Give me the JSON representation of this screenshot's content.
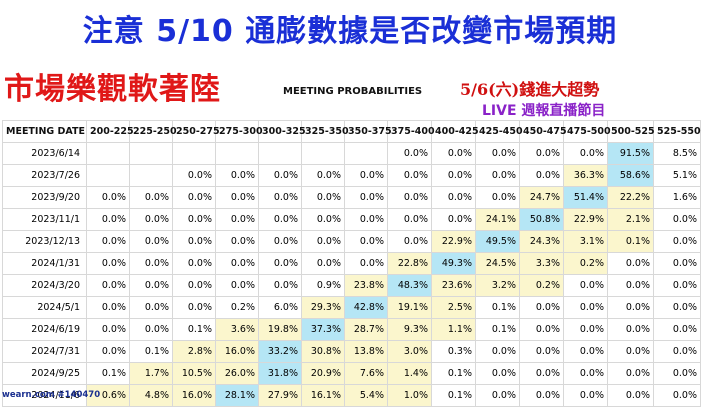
{
  "headline": "注意 5/10 通膨數據是否改變市場預期",
  "red_title": "市場樂觀軟著陸",
  "table_title": "MEETING PROBABILITIES",
  "promo_line1": "5/6(六)錢進大超勢",
  "promo_line2": "LIVE 週報直播節目",
  "footer": "wearn.com #140470",
  "colors": {
    "headline": "#1a2fd6",
    "red_title": "#e01818",
    "highlight": "#b5e6f5",
    "near_highlight": "#fbf6cd"
  },
  "table": {
    "columns": [
      "MEETING DATE",
      "200-225",
      "225-250",
      "250-275",
      "275-300",
      "300-325",
      "325-350",
      "350-375",
      "375-400",
      "400-425",
      "425-450",
      "450-475",
      "475-500",
      "500-525",
      "525-550"
    ],
    "rows": [
      {
        "date": "2023/6/14",
        "cells": [
          "",
          "",
          "",
          "",
          "",
          "",
          "",
          "0.0%",
          "0.0%",
          "0.0%",
          "0.0%",
          "0.0%",
          "91.5%",
          "8.5%"
        ]
      },
      {
        "date": "2023/7/26",
        "cells": [
          "",
          "",
          "0.0%",
          "0.0%",
          "0.0%",
          "0.0%",
          "0.0%",
          "0.0%",
          "0.0%",
          "0.0%",
          "0.0%",
          "36.3%",
          "58.6%",
          "5.1%"
        ]
      },
      {
        "date": "2023/9/20",
        "cells": [
          "0.0%",
          "0.0%",
          "0.0%",
          "0.0%",
          "0.0%",
          "0.0%",
          "0.0%",
          "0.0%",
          "0.0%",
          "0.0%",
          "24.7%",
          "51.4%",
          "22.2%",
          "1.6%"
        ]
      },
      {
        "date": "2023/11/1",
        "cells": [
          "0.0%",
          "0.0%",
          "0.0%",
          "0.0%",
          "0.0%",
          "0.0%",
          "0.0%",
          "0.0%",
          "0.0%",
          "24.1%",
          "50.8%",
          "22.9%",
          "2.1%",
          "0.0%"
        ]
      },
      {
        "date": "2023/12/13",
        "cells": [
          "0.0%",
          "0.0%",
          "0.0%",
          "0.0%",
          "0.0%",
          "0.0%",
          "0.0%",
          "0.0%",
          "22.9%",
          "49.5%",
          "24.3%",
          "3.1%",
          "0.1%",
          "0.0%"
        ]
      },
      {
        "date": "2024/1/31",
        "cells": [
          "0.0%",
          "0.0%",
          "0.0%",
          "0.0%",
          "0.0%",
          "0.0%",
          "0.0%",
          "22.8%",
          "49.3%",
          "24.5%",
          "3.3%",
          "0.2%",
          "0.0%",
          "0.0%"
        ]
      },
      {
        "date": "2024/3/20",
        "cells": [
          "0.0%",
          "0.0%",
          "0.0%",
          "0.0%",
          "0.0%",
          "0.9%",
          "23.8%",
          "48.3%",
          "23.6%",
          "3.2%",
          "0.2%",
          "0.0%",
          "0.0%",
          "0.0%"
        ]
      },
      {
        "date": "2024/5/1",
        "cells": [
          "0.0%",
          "0.0%",
          "0.0%",
          "0.2%",
          "6.0%",
          "29.3%",
          "42.8%",
          "19.1%",
          "2.5%",
          "0.1%",
          "0.0%",
          "0.0%",
          "0.0%",
          "0.0%"
        ]
      },
      {
        "date": "2024/6/19",
        "cells": [
          "0.0%",
          "0.0%",
          "0.1%",
          "3.6%",
          "19.8%",
          "37.3%",
          "28.7%",
          "9.3%",
          "1.1%",
          "0.1%",
          "0.0%",
          "0.0%",
          "0.0%",
          "0.0%"
        ]
      },
      {
        "date": "2024/7/31",
        "cells": [
          "0.0%",
          "0.1%",
          "2.8%",
          "16.0%",
          "33.2%",
          "30.8%",
          "13.8%",
          "3.0%",
          "0.3%",
          "0.0%",
          "0.0%",
          "0.0%",
          "0.0%",
          "0.0%"
        ]
      },
      {
        "date": "2024/9/25",
        "cells": [
          "0.1%",
          "1.7%",
          "10.5%",
          "26.0%",
          "31.8%",
          "20.9%",
          "7.6%",
          "1.4%",
          "0.1%",
          "0.0%",
          "0.0%",
          "0.0%",
          "0.0%",
          "0.0%"
        ]
      },
      {
        "date": "2024/11/6",
        "cells": [
          "0.6%",
          "4.8%",
          "16.0%",
          "28.1%",
          "27.9%",
          "16.1%",
          "5.4%",
          "1.0%",
          "0.1%",
          "0.0%",
          "0.0%",
          "0.0%",
          "0.0%",
          "0.0%"
        ]
      }
    ]
  },
  "highlight_cells": [
    [
      0,
      12
    ],
    [
      1,
      12
    ],
    [
      2,
      11
    ],
    [
      3,
      10
    ],
    [
      4,
      9
    ],
    [
      5,
      8
    ],
    [
      6,
      7
    ],
    [
      7,
      6
    ],
    [
      8,
      5
    ],
    [
      9,
      4
    ],
    [
      10,
      4
    ],
    [
      11,
      3
    ]
  ],
  "near_highlight_cells": [
    [
      1,
      11
    ],
    [
      2,
      10
    ],
    [
      2,
      12
    ],
    [
      3,
      9
    ],
    [
      3,
      11
    ],
    [
      3,
      12
    ],
    [
      4,
      8
    ],
    [
      4,
      10
    ],
    [
      4,
      11
    ],
    [
      4,
      12
    ],
    [
      5,
      7
    ],
    [
      5,
      9
    ],
    [
      5,
      10
    ],
    [
      5,
      11
    ],
    [
      6,
      6
    ],
    [
      6,
      8
    ],
    [
      6,
      9
    ],
    [
      6,
      10
    ],
    [
      7,
      5
    ],
    [
      7,
      7
    ],
    [
      7,
      8
    ],
    [
      8,
      3
    ],
    [
      8,
      4
    ],
    [
      8,
      6
    ],
    [
      8,
      7
    ],
    [
      8,
      8
    ],
    [
      9,
      2
    ],
    [
      9,
      3
    ],
    [
      9,
      5
    ],
    [
      9,
      6
    ],
    [
      9,
      7
    ],
    [
      10,
      1
    ],
    [
      10,
      2
    ],
    [
      10,
      3
    ],
    [
      10,
      5
    ],
    [
      10,
      6
    ],
    [
      10,
      7
    ],
    [
      11,
      0
    ],
    [
      11,
      1
    ],
    [
      11,
      2
    ],
    [
      11,
      4
    ],
    [
      11,
      5
    ],
    [
      11,
      6
    ],
    [
      11,
      7
    ]
  ]
}
